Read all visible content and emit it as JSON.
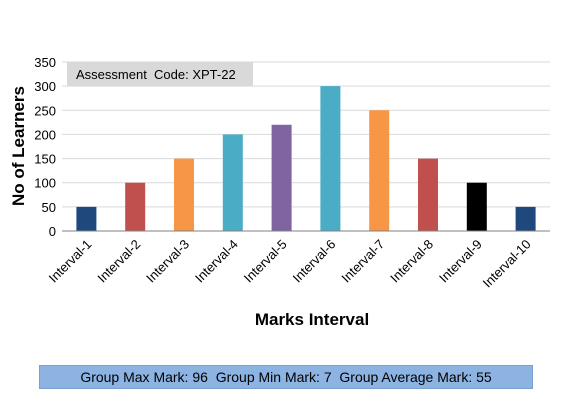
{
  "chart_data": {
    "type": "bar",
    "categories": [
      "Interval-1",
      "Interval-2",
      "Interval-3",
      "Interval-4",
      "Interval-5",
      "Interval-6",
      "Interval-7",
      "Interval-8",
      "Interval-9",
      "Interval-10"
    ],
    "values": [
      50,
      100,
      150,
      200,
      220,
      300,
      250,
      150,
      100,
      50
    ],
    "colors": [
      "#1f497d",
      "#c0504d",
      "#f79646",
      "#4bacc6",
      "#8064a2",
      "#4bacc6",
      "#f79646",
      "#c0504d",
      "#000000",
      "#1f497d"
    ],
    "xlabel": "Marks Interval",
    "ylabel": "No of Learners",
    "ylim": [
      0,
      350
    ],
    "yticks": [
      0,
      50,
      100,
      150,
      200,
      250,
      300,
      350
    ],
    "grid": true,
    "grid_color": "#d9d9d9"
  },
  "assessment_label": "Assessment  Code: XPT-22",
  "summary": "Group Max Mark: 96  Group Min Mark: 7  Group Average Mark: 55"
}
